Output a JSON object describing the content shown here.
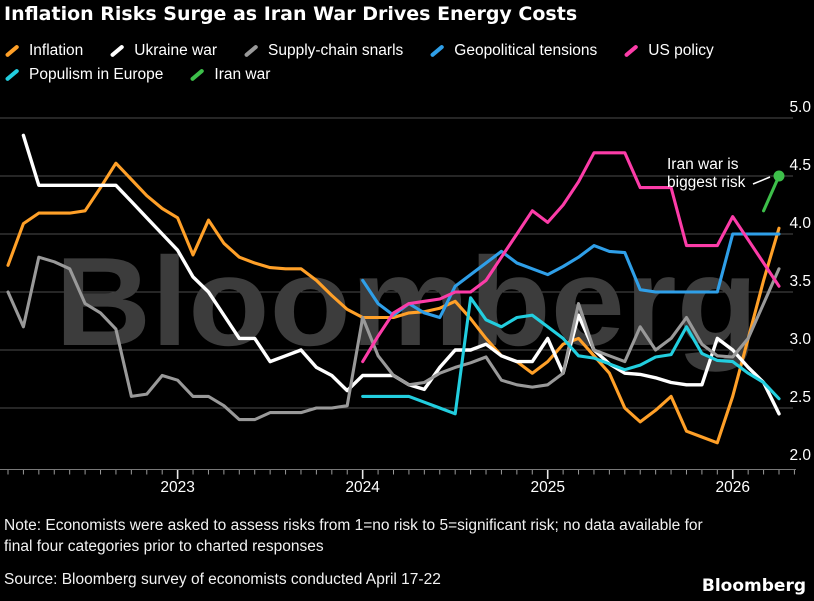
{
  "title": "Inflation Risks Surge as Iran War Drives Energy Costs",
  "legend": [
    {
      "label": "Inflation",
      "color": "#FFA028"
    },
    {
      "label": "Ukraine war",
      "color": "#FFFFFF"
    },
    {
      "label": "Supply-chain snarls",
      "color": "#999999"
    },
    {
      "label": "Geopolitical tensions",
      "color": "#2F9FE8"
    },
    {
      "label": "US policy",
      "color": "#FC3CA8"
    },
    {
      "label": "Populism in Europe",
      "color": "#22CEDF"
    },
    {
      "label": "Iran war",
      "color": "#3DBF4A"
    }
  ],
  "annotation": {
    "line1": "Iran war is",
    "line2": "biggest risk"
  },
  "watermark": "Bloomberg",
  "footer": {
    "note_line1": "Note: Economists were asked to assess risks from 1=no risk to 5=significant risk; no data available for",
    "note_line2": "final four categories prior to charted responses",
    "source": "Source: Bloomberg survey of economists conducted April 17-22",
    "logo": "Bloomberg"
  },
  "chart_data": {
    "type": "line",
    "title": "Inflation Risks Surge as Iran War Drives Energy Costs",
    "x_interval": "monthly",
    "month_index_0": "2022-02",
    "x_year_ticks": [
      {
        "label": "2023",
        "month_index": 11
      },
      {
        "label": "2024",
        "month_index": 23
      },
      {
        "label": "2025",
        "month_index": 35
      },
      {
        "label": "2026",
        "month_index": 47
      }
    ],
    "y_ticks": [
      5.0,
      4.5,
      4.0,
      3.5,
      3.0,
      2.5,
      2.0
    ],
    "ylim": [
      2.0,
      5.0
    ],
    "value_scale": "1=no risk to 5=significant risk",
    "grid": "horizontal",
    "legend_position": "top",
    "series": [
      {
        "name": "Inflation",
        "color": "#FFA028",
        "start_month_index": 0,
        "values": [
          3.73,
          4.09,
          4.18,
          4.18,
          4.18,
          4.2,
          4.4,
          4.61,
          4.47,
          4.33,
          4.22,
          4.14,
          3.82,
          4.12,
          3.92,
          3.8,
          3.75,
          3.71,
          3.7,
          3.7,
          3.6,
          3.47,
          3.35,
          3.28,
          3.28,
          3.28,
          3.32,
          3.33,
          3.36,
          3.42,
          3.27,
          3.1,
          2.95,
          2.9,
          2.8,
          2.9,
          3.05,
          3.1,
          2.95,
          2.8,
          2.5,
          2.38,
          2.48,
          2.6,
          2.3,
          2.25,
          2.2,
          2.6,
          3.1,
          3.6,
          4.05
        ]
      },
      {
        "name": "Ukraine war",
        "color": "#FFFFFF",
        "start_month_index": 1,
        "values": [
          4.85,
          4.42,
          4.42,
          4.42,
          4.42,
          4.42,
          4.42,
          4.28,
          4.14,
          4.0,
          3.86,
          3.63,
          3.5,
          3.3,
          3.1,
          3.1,
          2.9,
          2.95,
          3.0,
          2.85,
          2.78,
          2.65,
          2.78,
          2.78,
          2.78,
          2.7,
          2.66,
          2.85,
          3.0,
          3.0,
          3.05,
          2.95,
          2.9,
          2.9,
          3.1,
          2.8,
          3.3,
          3.0,
          2.88,
          2.8,
          2.79,
          2.76,
          2.72,
          2.7,
          2.7,
          3.1,
          3.0,
          2.85,
          2.72,
          2.45
        ]
      },
      {
        "name": "Supply-chain snarls",
        "color": "#999999",
        "start_month_index": 0,
        "values": [
          3.5,
          3.2,
          3.8,
          3.76,
          3.7,
          3.4,
          3.32,
          3.18,
          2.6,
          2.62,
          2.78,
          2.74,
          2.6,
          2.6,
          2.52,
          2.4,
          2.4,
          2.46,
          2.46,
          2.46,
          2.5,
          2.5,
          2.52,
          3.28,
          2.95,
          2.78,
          2.7,
          2.72,
          2.8,
          2.85,
          2.89,
          2.94,
          2.74,
          2.7,
          2.68,
          2.7,
          2.8,
          3.4,
          3.0,
          2.95,
          2.9,
          3.2,
          3.0,
          3.1,
          3.28,
          3.05,
          2.95,
          2.94,
          3.1,
          3.4,
          3.7
        ]
      },
      {
        "name": "Geopolitical tensions",
        "color": "#2F9FE8",
        "start_month_index": 23,
        "values": [
          3.6,
          3.4,
          3.3,
          3.4,
          3.32,
          3.28,
          3.55,
          3.65,
          3.75,
          3.85,
          3.75,
          3.7,
          3.65,
          3.72,
          3.8,
          3.9,
          3.85,
          3.84,
          3.52,
          3.5,
          3.5,
          3.5,
          3.5,
          3.5,
          4.0,
          4.0,
          4.0,
          4.0
        ]
      },
      {
        "name": "US policy",
        "color": "#FC3CA8",
        "start_month_index": 23,
        "values": [
          2.9,
          3.12,
          3.32,
          3.4,
          3.42,
          3.44,
          3.5,
          3.5,
          3.6,
          3.8,
          4.0,
          4.2,
          4.1,
          4.25,
          4.45,
          4.7,
          4.7,
          4.7,
          4.4,
          4.4,
          4.4,
          3.9,
          3.9,
          3.9,
          4.15,
          3.95,
          3.75,
          3.55
        ]
      },
      {
        "name": "Populism in Europe",
        "color": "#22CEDF",
        "start_month_index": 23,
        "values": [
          2.6,
          2.6,
          2.6,
          2.6,
          2.55,
          2.5,
          2.45,
          3.45,
          3.26,
          3.2,
          3.28,
          3.3,
          3.2,
          3.1,
          2.95,
          2.93,
          2.88,
          2.83,
          2.87,
          2.94,
          2.96,
          3.2,
          2.97,
          2.91,
          2.9,
          2.8,
          2.72,
          2.58
        ]
      },
      {
        "name": "Iran war",
        "color": "#3DBF4A",
        "start_month_index": 49,
        "end_dot": true,
        "values": [
          4.2,
          4.5
        ]
      }
    ]
  }
}
